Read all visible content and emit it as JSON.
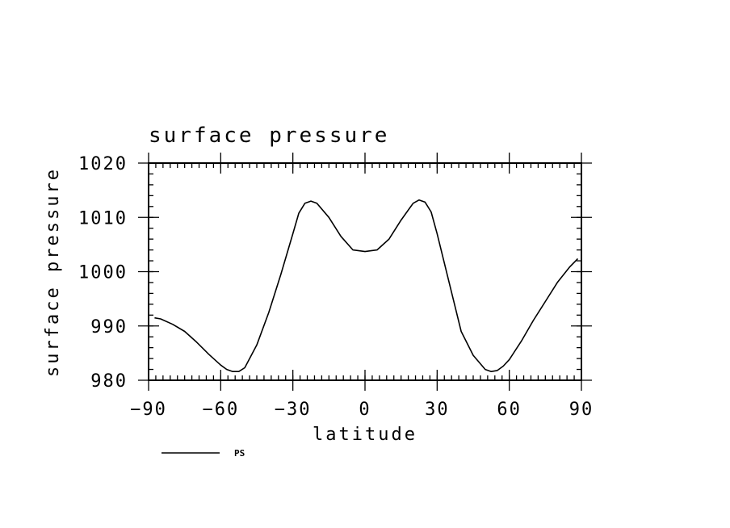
{
  "chart_data": {
    "type": "line",
    "title": "surface pressure",
    "xlabel": "latitude",
    "ylabel": "surface pressure",
    "xlim": [
      -90,
      90
    ],
    "ylim": [
      980,
      1020
    ],
    "xticks": [
      -90,
      -60,
      -30,
      0,
      30,
      60,
      90
    ],
    "xtick_labels": [
      "−90",
      "−60",
      "−30",
      "0",
      "30",
      "60",
      "90"
    ],
    "yticks": [
      980,
      990,
      1000,
      1010,
      1020
    ],
    "ytick_labels": [
      "980",
      "990",
      "1000",
      "1010",
      "1020"
    ],
    "legend": "bottom-left",
    "grid": false,
    "series": [
      {
        "name": "PS",
        "color": "#000000",
        "x": [
          -87.5,
          -85,
          -80,
          -75,
          -70,
          -65,
          -60,
          -57.5,
          -55,
          -52.5,
          -50,
          -45,
          -40,
          -35,
          -30,
          -27.5,
          -25,
          -22.5,
          -20,
          -15,
          -10,
          -5,
          0,
          5,
          10,
          15,
          20,
          22.5,
          25,
          27.5,
          30,
          35,
          40,
          45,
          50,
          52.5,
          55,
          57.5,
          60,
          65,
          70,
          75,
          80,
          85,
          88.5
        ],
        "values": [
          991.5,
          991.3,
          990.3,
          989.0,
          987.0,
          984.8,
          982.8,
          982.0,
          981.6,
          981.6,
          982.3,
          986.5,
          992.5,
          999.5,
          1007.0,
          1010.8,
          1012.6,
          1013.0,
          1012.6,
          1010.0,
          1006.5,
          1004.0,
          1003.7,
          1004.0,
          1006.0,
          1009.5,
          1012.6,
          1013.2,
          1012.8,
          1011.0,
          1007.0,
          998.0,
          989.0,
          984.6,
          982.0,
          981.6,
          981.8,
          982.6,
          983.8,
          987.2,
          991.0,
          994.5,
          998.0,
          1000.8,
          1002.4
        ]
      }
    ]
  }
}
